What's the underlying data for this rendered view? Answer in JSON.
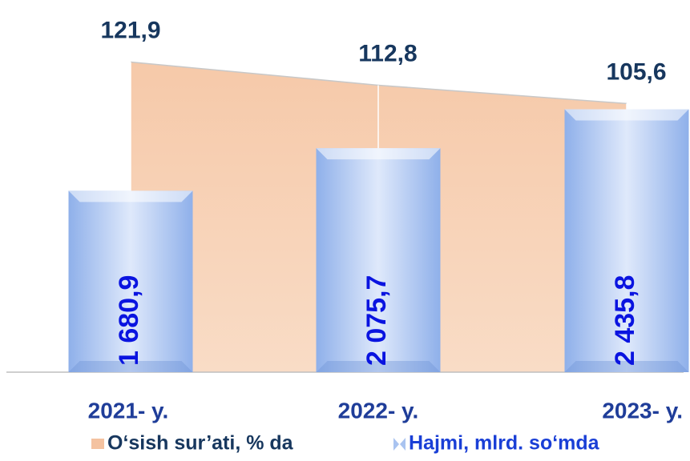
{
  "chart_data": {
    "type": "combo",
    "categories": [
      "2021- y.",
      "2022- y.",
      "2023- y."
    ],
    "series": [
      {
        "name": "O‘sish sur’ati, % da",
        "type": "area",
        "color": "#f4c2a0",
        "axis": "y",
        "values": [
          121.9,
          112.8,
          105.6
        ],
        "value_labels": [
          "121,9",
          "112,8",
          "105,6"
        ]
      },
      {
        "name": "Hajmi, mlrd. so‘mda",
        "type": "bar",
        "color": "#a9c3f0",
        "axis": "y2",
        "values": [
          1680.9,
          2075.7,
          2435.8
        ],
        "value_labels": [
          "1 680,9",
          "2 075,7",
          "2 435,8"
        ]
      }
    ],
    "ylim": [
      0,
      140
    ],
    "y2lim": [
      0,
      3300
    ],
    "legend": "bottom"
  }
}
